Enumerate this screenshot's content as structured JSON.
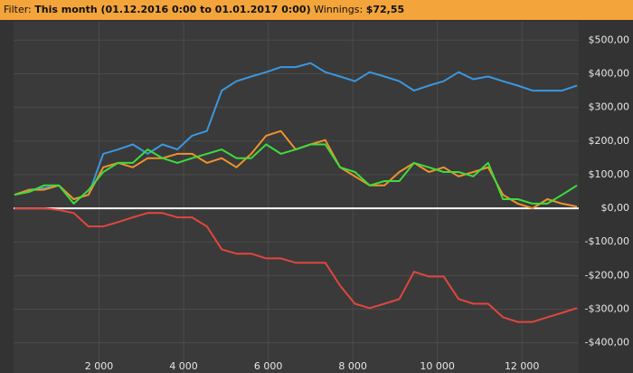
{
  "filter_bar": {
    "label": "Filter:",
    "filter": "This month (01.12.2016 0:00 to 01.01.2017 0:00)",
    "winnings_label": "Winnings:",
    "winnings": "$72,55"
  },
  "chart_data": {
    "type": "line",
    "x": [
      0,
      350,
      700,
      1050,
      1400,
      1750,
      2100,
      2450,
      2800,
      3150,
      3500,
      3850,
      4200,
      4550,
      4900,
      5250,
      5600,
      5950,
      6300,
      6650,
      7000,
      7350,
      7700,
      8050,
      8400,
      8750,
      9100,
      9450,
      9800,
      10150,
      10500,
      10850,
      11200,
      11550,
      11900,
      12250,
      12600,
      12950,
      13300
    ],
    "series": [
      {
        "color": "#3b97de",
        "values": [
          40,
          55,
          60,
          68,
          27,
          40,
          162,
          175,
          190,
          162,
          190,
          175,
          216,
          230,
          350,
          378,
          392,
          405,
          420,
          420,
          432,
          405,
          392,
          378,
          405,
          392,
          378,
          350,
          365,
          378,
          405,
          384,
          392,
          378,
          365,
          350,
          350,
          350,
          365
        ]
      },
      {
        "color": "#f0922b",
        "values": [
          40,
          55,
          55,
          68,
          27,
          40,
          122,
          135,
          122,
          149,
          149,
          162,
          162,
          135,
          149,
          122,
          162,
          216,
          230,
          175,
          190,
          203,
          122,
          95,
          68,
          68,
          108,
          135,
          108,
          122,
          95,
          108,
          122,
          40,
          14,
          0,
          27,
          14,
          5
        ]
      },
      {
        "color": "#3ddc3d",
        "values": [
          40,
          49,
          68,
          68,
          14,
          54,
          108,
          135,
          135,
          175,
          149,
          135,
          149,
          162,
          175,
          149,
          149,
          190,
          162,
          175,
          190,
          190,
          122,
          108,
          68,
          81,
          81,
          135,
          122,
          108,
          108,
          95,
          135,
          27,
          27,
          14,
          14,
          40,
          68
        ]
      },
      {
        "color": "#e0463f",
        "values": [
          0,
          0,
          0,
          -5,
          -14,
          -54,
          -54,
          -41,
          -27,
          -14,
          -14,
          -27,
          -27,
          -54,
          -122,
          -135,
          -135,
          -149,
          -149,
          -162,
          -162,
          -162,
          -230,
          -284,
          -297,
          -284,
          -270,
          -189,
          -203,
          -203,
          -270,
          -284,
          -284,
          -324,
          -338,
          -338,
          -324,
          -311,
          -297
        ]
      }
    ],
    "xlim": [
      0,
      13300
    ],
    "ylim": [
      -490,
      555
    ],
    "xticks": [
      {
        "value": 2000,
        "label": "2 000"
      },
      {
        "value": 4000,
        "label": "4 000"
      },
      {
        "value": 6000,
        "label": "6 000"
      },
      {
        "value": 8000,
        "label": "8 000"
      },
      {
        "value": 10000,
        "label": "10 000"
      },
      {
        "value": 12000,
        "label": "12 000"
      }
    ],
    "yticks": [
      {
        "value": 500,
        "label": "$500,00"
      },
      {
        "value": 400,
        "label": "$400,00"
      },
      {
        "value": 300,
        "label": "$300,00"
      },
      {
        "value": 200,
        "label": "$200,00"
      },
      {
        "value": 100,
        "label": "$100,00"
      },
      {
        "value": 0,
        "label": "$0,00"
      },
      {
        "value": -100,
        "label": "-$100,00"
      },
      {
        "value": -200,
        "label": "-$200,00"
      },
      {
        "value": -300,
        "label": "-$300,00"
      },
      {
        "value": -400,
        "label": "-$400,00"
      }
    ],
    "grid": true
  }
}
